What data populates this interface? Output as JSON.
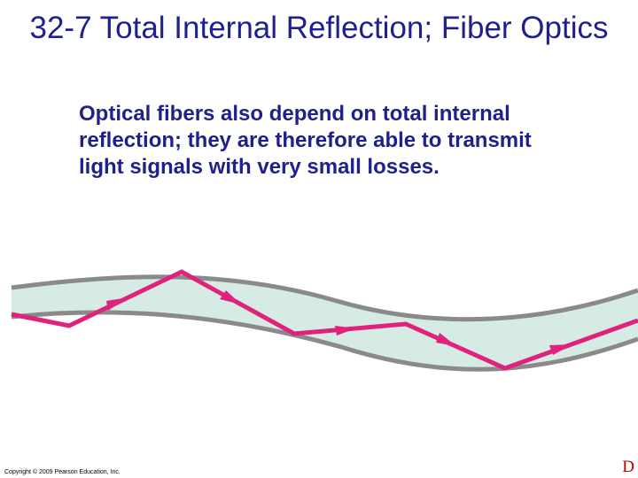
{
  "slide": {
    "title": "32-7 Total Internal Reflection; Fiber Optics",
    "body": "Optical fibers also depend on total internal reflection; they are therefore able to transmit light signals with very small losses.",
    "copyright": "Copyright © 2009 Pearson Education, Inc.",
    "corner_mark": "D"
  },
  "figure": {
    "fiber_fill": "#d6ebe3",
    "cladding_color": "#8a8a8a",
    "light_ray_color": "#e0227c"
  }
}
